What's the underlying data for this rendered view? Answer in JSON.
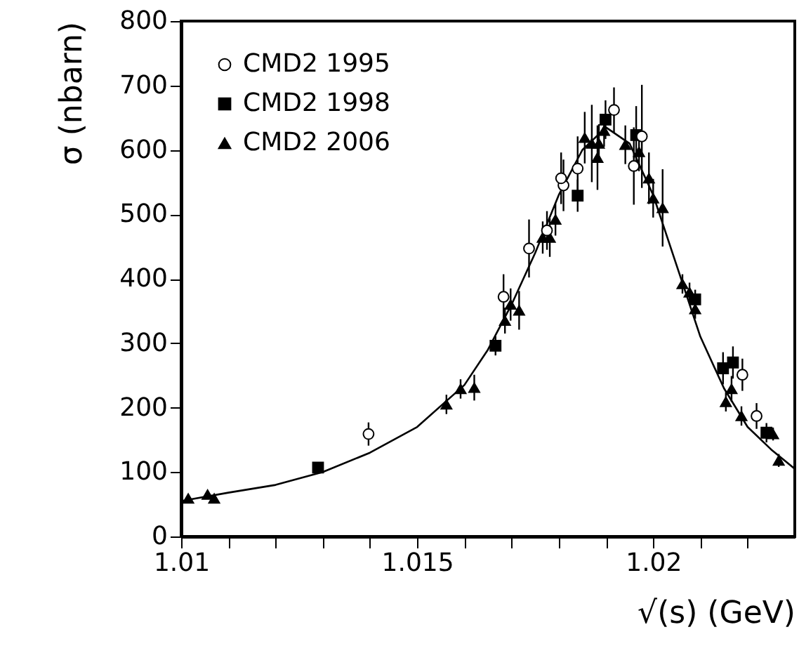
{
  "chart_data": {
    "type": "scatter",
    "xlabel": "√(s) (GeV)",
    "ylabel": "σ (nbarn)",
    "xlim": [
      1.01,
      1.023
    ],
    "xticks": [
      1.01,
      {
        "value": 1.011,
        "label": null
      },
      {
        "value": 1.012,
        "label": null
      },
      {
        "value": 1.013,
        "label": null
      },
      {
        "value": 1.014,
        "label": null
      },
      1.015,
      {
        "value": 1.016,
        "label": null
      },
      {
        "value": 1.017,
        "label": null
      },
      {
        "value": 1.018,
        "label": null
      },
      {
        "value": 1.019,
        "label": null
      },
      1.02,
      {
        "value": 1.021,
        "label": null
      },
      {
        "value": 1.022,
        "label": null
      }
    ],
    "ylim": [
      0,
      800
    ],
    "yticks": [
      0,
      100,
      200,
      300,
      400,
      500,
      600,
      700,
      800
    ],
    "legend": "top left",
    "grid": false,
    "series": [
      {
        "name": "CMD2 1995",
        "type": "scatter",
        "marker": "circle",
        "color": "#000000",
        "x": [
          1.01397,
          1.01683,
          1.01737,
          1.01775,
          1.01805,
          1.0181,
          1.0184,
          1.01917,
          1.01959,
          1.01976,
          1.02189,
          1.02219
        ],
        "values": [
          159,
          372,
          447,
          475,
          556,
          545,
          571,
          662,
          575,
          621,
          251,
          187
        ],
        "errors": [
          18,
          35,
          45,
          30,
          40,
          40,
          50,
          35,
          60,
          80,
          25,
          20
        ]
      },
      {
        "name": "CMD2 1998",
        "type": "scatter",
        "marker": "square",
        "color": "#000000",
        "x": [
          1.0129,
          1.01666,
          1.0184,
          1.01899,
          1.01964,
          1.02089,
          1.02148,
          1.02169,
          1.0224
        ],
        "values": [
          107,
          296,
          529,
          647,
          623,
          368,
          261,
          270,
          161
        ],
        "errors": [
          8,
          15,
          25,
          30,
          45,
          15,
          25,
          25,
          15
        ]
      },
      {
        "name": "CMD2 2006",
        "type": "scatter",
        "marker": "triangle",
        "color": "#000000",
        "x": [
          1.01015,
          1.01056,
          1.0107,
          1.01562,
          1.01592,
          1.01621,
          1.01686,
          1.01698,
          1.01716,
          1.01766,
          1.01781,
          1.01793,
          1.01855,
          1.0187,
          1.01882,
          1.01885,
          1.01896,
          1.01941,
          1.0197,
          1.01991,
          1.02,
          1.0202,
          1.02062,
          1.02077,
          1.02089,
          1.02154,
          1.02166,
          1.02187,
          1.02254,
          1.02266
        ],
        "values": [
          59,
          65,
          59,
          205,
          229,
          231,
          335,
          360,
          351,
          464,
          464,
          492,
          619,
          610,
          588,
          610,
          630,
          608,
          597,
          556,
          525,
          510,
          392,
          379,
          353,
          209,
          229,
          187,
          159,
          118
        ],
        "errors": [
          6,
          6,
          6,
          15,
          15,
          20,
          20,
          25,
          30,
          25,
          30,
          25,
          40,
          60,
          50,
          30,
          25,
          30,
          30,
          40,
          30,
          60,
          15,
          15,
          15,
          15,
          20,
          15,
          10,
          10
        ]
      },
      {
        "type": "line",
        "marker": "none",
        "line_style": "solid",
        "color": "#000000",
        "x": [
          1.01,
          1.011,
          1.012,
          1.013,
          1.014,
          1.015,
          1.016,
          1.0165,
          1.017,
          1.0175,
          1.018,
          1.0185,
          1.019,
          1.0195,
          1.02,
          1.0205,
          1.021,
          1.0215,
          1.022,
          1.0225,
          1.023
        ],
        "values": [
          55,
          68,
          80,
          100,
          130,
          170,
          235,
          290,
          360,
          440,
          530,
          600,
          635,
          610,
          530,
          420,
          310,
          230,
          170,
          135,
          105
        ]
      }
    ]
  }
}
